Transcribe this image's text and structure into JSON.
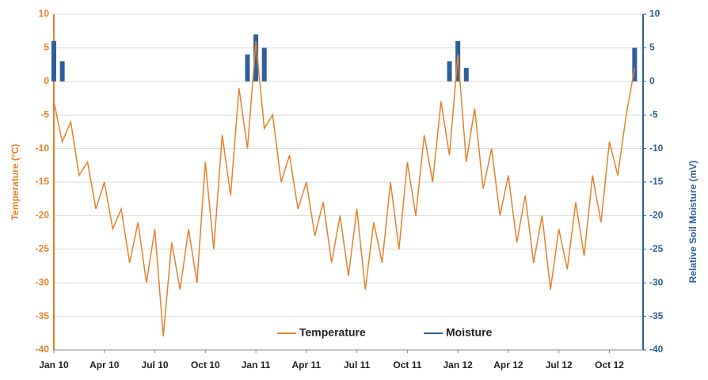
{
  "chart_data": {
    "type": "line",
    "y_label": "Temperature (°C)",
    "y2_label": "Relative Soil Moisture (mV)",
    "x": [
      0,
      0.5,
      1,
      1.5,
      2,
      2.5,
      3,
      3.5,
      4,
      4.5,
      5,
      5.5,
      6,
      6.5,
      7,
      7.5,
      8,
      8.5,
      9,
      9.5,
      10,
      10.5,
      11,
      11.5,
      12,
      12.5,
      13,
      13.5,
      14,
      14.5,
      15,
      15.5,
      16,
      16.5,
      17,
      17.5,
      18,
      18.5,
      19,
      19.5,
      20,
      20.5,
      21,
      21.5,
      22,
      22.5,
      23,
      23.5,
      24,
      24.5,
      25,
      25.5,
      26,
      26.5,
      27,
      27.5,
      28,
      28.5,
      29,
      29.5,
      30,
      30.5,
      31,
      31.5,
      32,
      32.5,
      33,
      33.5,
      34,
      34.5
    ],
    "xlim": [
      0,
      35
    ],
    "xticks": [
      {
        "value": 0,
        "label": "Jan 10"
      },
      {
        "value": 3,
        "label": "Apr 10"
      },
      {
        "value": 6,
        "label": "Jul 10"
      },
      {
        "value": 9,
        "label": "Oct 10"
      },
      {
        "value": 12,
        "label": "Jan 11"
      },
      {
        "value": 15,
        "label": "Apr 11"
      },
      {
        "value": 18,
        "label": "Jul 11"
      },
      {
        "value": 21,
        "label": "Oct 11"
      },
      {
        "value": 24,
        "label": "Jan 12"
      },
      {
        "value": 27,
        "label": "Apr 12"
      },
      {
        "value": 30,
        "label": "Jul 12"
      },
      {
        "value": 33,
        "label": "Oct 12"
      }
    ],
    "ylim": [
      -40,
      10
    ],
    "yticks": [
      -40,
      -35,
      -30,
      -25,
      -20,
      -15,
      -10,
      -5,
      0,
      5,
      10
    ],
    "y2lim": [
      -40,
      10
    ],
    "y2ticks": [
      -40,
      -35,
      -30,
      -25,
      -20,
      -15,
      -10,
      -5,
      0,
      5,
      10
    ],
    "grid": true,
    "legend": "bottom",
    "series": [
      {
        "name": "Temperature",
        "color": "#e8812a",
        "type": "line",
        "values": [
          -3,
          -9,
          -6,
          -14,
          -12,
          -19,
          -15,
          -22,
          -19,
          -27,
          -21,
          -30,
          -22,
          -38,
          -24,
          -31,
          -22,
          -30,
          -12,
          -25,
          -8,
          -17,
          -1,
          -10,
          6,
          -7,
          -5,
          -15,
          -11,
          -19,
          -15,
          -23,
          -18,
          -27,
          -20,
          -29,
          -19,
          -31,
          -21,
          -27,
          -15,
          -25,
          -12,
          -20,
          -8,
          -15,
          -3,
          -11,
          4,
          -12,
          -4,
          -16,
          -10,
          -20,
          -14,
          -24,
          -17,
          -27,
          -20,
          -31,
          -22,
          -28,
          -18,
          -26,
          -14,
          -21,
          -9,
          -14,
          -5,
          2
        ]
      },
      {
        "name": "Moisture",
        "color": "#2f5f9a",
        "type": "bar",
        "axis": "y2",
        "values": [
          6,
          3,
          null,
          null,
          null,
          null,
          null,
          null,
          null,
          null,
          null,
          null,
          null,
          null,
          null,
          null,
          null,
          null,
          null,
          null,
          null,
          null,
          null,
          4,
          7,
          5,
          null,
          null,
          null,
          null,
          null,
          null,
          null,
          null,
          null,
          null,
          null,
          null,
          null,
          null,
          null,
          null,
          null,
          null,
          null,
          null,
          null,
          3,
          6,
          2,
          null,
          null,
          null,
          null,
          null,
          null,
          null,
          null,
          null,
          null,
          null,
          null,
          null,
          null,
          null,
          null,
          null,
          null,
          null,
          5
        ]
      }
    ]
  }
}
